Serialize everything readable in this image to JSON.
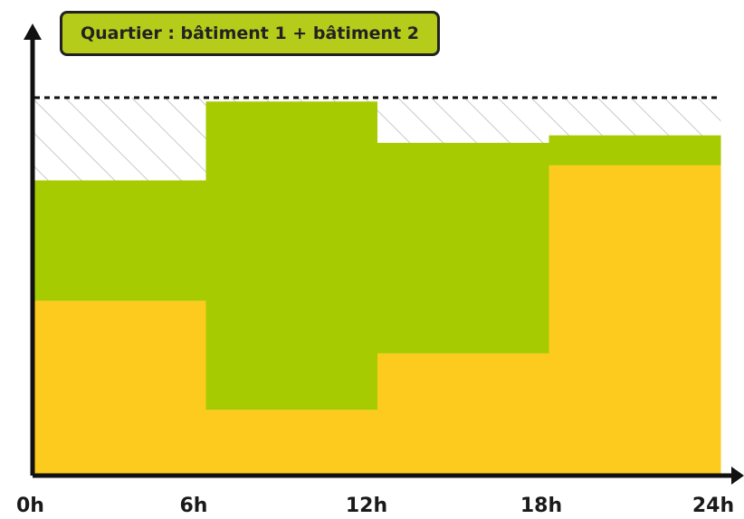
{
  "chart_data": {
    "type": "area",
    "title": "Quartier : bâtiment 1 + bâtiment 2",
    "x_ticks": [
      "0h",
      "6h",
      "12h",
      "18h",
      "24h"
    ],
    "xlim": [
      0,
      24
    ],
    "ylim": [
      0,
      10
    ],
    "step_edges": [
      0,
      6,
      12,
      18,
      24
    ],
    "series": [
      {
        "values": [
          4.6,
          1.7,
          3.2,
          8.2
        ]
      },
      {
        "values": [
          3.2,
          8.2,
          5.6,
          0.8
        ]
      }
    ],
    "capacity": 10,
    "colors": {
      "building1": "#fdca1e",
      "building2": "#a6cb00",
      "unused_hatch": "#c9c9c9",
      "axis": "#111111",
      "title_bg": "#b5cc1a"
    }
  }
}
